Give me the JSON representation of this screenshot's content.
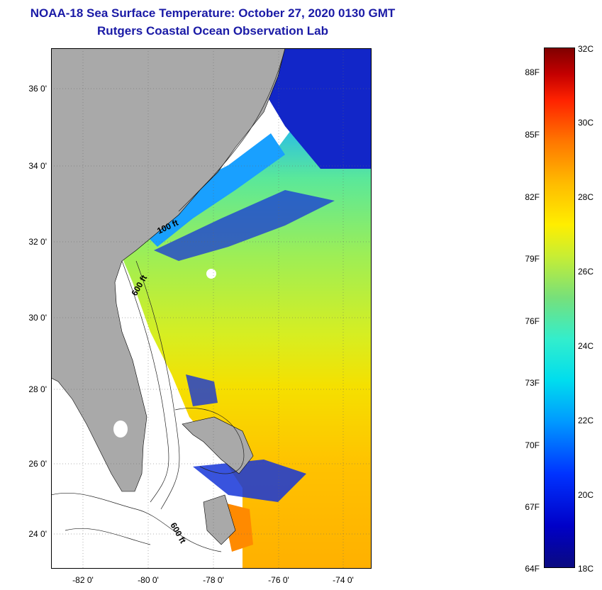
{
  "header": {
    "title": "NOAA-18 Sea Surface Temperature:  October 27, 2020 0130 GMT",
    "subtitle": "Rutgers Coastal Ocean Observation Lab"
  },
  "map": {
    "lat_labels": [
      "36 0'",
      "34 0'",
      "32 0'",
      "30 0'",
      "28 0'",
      "26 0'",
      "24 0'"
    ],
    "lon_labels": [
      "-82 0'",
      "-80 0'",
      "-78 0'",
      "-76 0'",
      "-74 0'"
    ],
    "contour_labels": [
      "100 ft",
      "600 ft",
      "600 ft"
    ],
    "land_color": "#a9a9a9",
    "nodata_color": "#ffffff"
  },
  "colorbar": {
    "fahrenheit_labels": [
      "88F",
      "85F",
      "82F",
      "79F",
      "76F",
      "73F",
      "70F",
      "67F",
      "64F"
    ],
    "celsius_labels": [
      "32C",
      "30C",
      "28C",
      "26C",
      "24C",
      "22C",
      "20C",
      "18C"
    ],
    "range_c": [
      18,
      32
    ]
  }
}
